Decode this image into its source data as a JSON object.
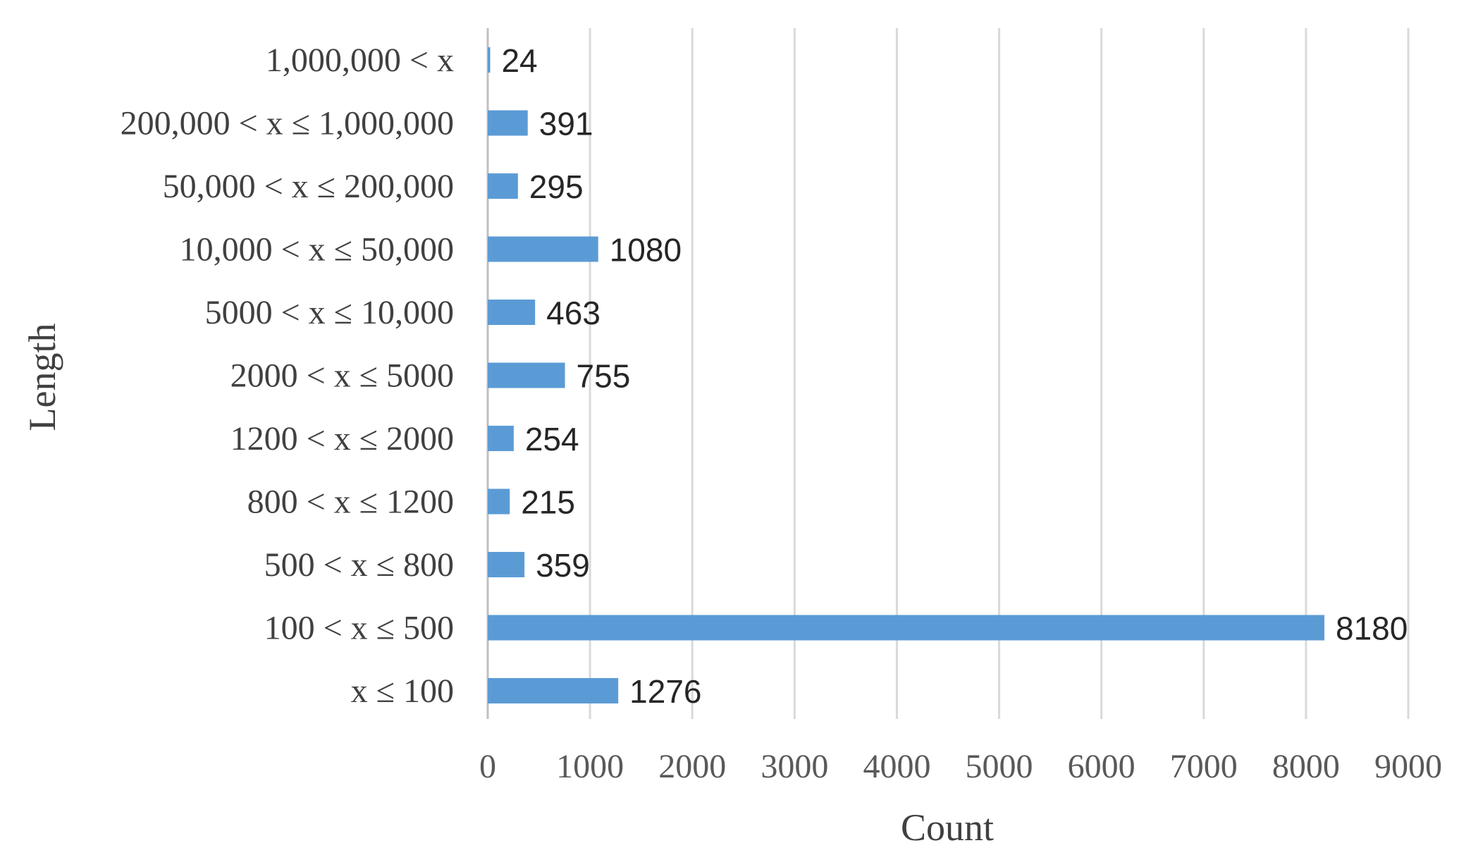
{
  "chart_data": {
    "type": "bar",
    "orientation": "horizontal",
    "xlabel": "Count",
    "ylabel": "Length",
    "xlim": [
      0,
      9000
    ],
    "xticks": [
      "0",
      "1000",
      "2000",
      "3000",
      "4000",
      "5000",
      "6000",
      "7000",
      "8000",
      "9000"
    ],
    "grid": true,
    "legend": "none",
    "bar_color": "#5b9bd5",
    "categories": [
      "x ≤ 100",
      "100 < x ≤ 500",
      "500 < x ≤ 800",
      "800 < x ≤ 1200",
      "1200 < x ≤ 2000",
      "2000 < x ≤ 5000",
      "5000 < x ≤ 10,000",
      "10,000 < x ≤ 50,000",
      "50,000 < x ≤ 200,000",
      "200,000 < x ≤ 1,000,000",
      "1,000,000 < x"
    ],
    "values": [
      1276,
      8180,
      359,
      215,
      254,
      755,
      463,
      1080,
      295,
      391,
      24
    ]
  }
}
